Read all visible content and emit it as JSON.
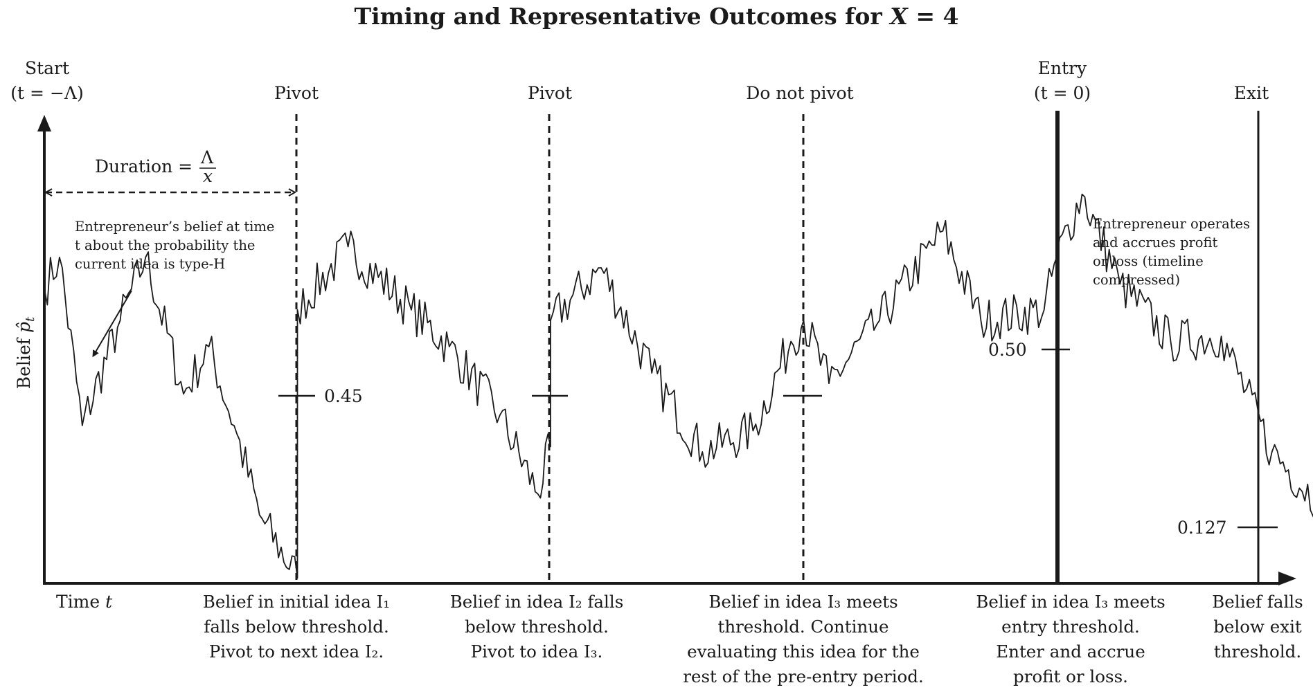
{
  "title": {
    "prefix": "Timing and Representative Outcomes for ",
    "var": "X",
    "suffix": " = 4"
  },
  "top_labels": {
    "start": "Start",
    "start_sub": "(t = −Λ)",
    "pivot1": "Pivot",
    "pivot2": "Pivot",
    "do_not_pivot": "Do not pivot",
    "entry": "Entry",
    "entry_sub": "(t = 0)",
    "exit": "Exit"
  },
  "duration": {
    "label": "Duration =",
    "num": "Λ",
    "den": "x"
  },
  "y_axis_label": {
    "text": "Belief ",
    "symbol": "p̂",
    "sub": "t"
  },
  "x_axis_label": {
    "text": "Time ",
    "symbol": "t"
  },
  "notes": {
    "belief": [
      "Entrepreneur’s belief at time",
      "t about the probability the",
      "current idea is type-H"
    ],
    "operates": [
      "Entrepreneur operates",
      "and accrues profit",
      "or loss (timeline",
      "compressed)"
    ]
  },
  "thresholds": {
    "pivot": "0.45",
    "entry": "0.50",
    "exit": "0.127"
  },
  "captions": {
    "c1": [
      "Belief in initial idea I₁",
      "falls below threshold.",
      "Pivot to next idea I₂."
    ],
    "c2": [
      "Belief in idea I₂ falls",
      "below threshold.",
      "Pivot to idea I₃."
    ],
    "c3": [
      "Belief in idea I₃ meets",
      "threshold. Continue",
      "evaluating this idea for the",
      "rest of the pre-entry period."
    ],
    "c4": [
      "Belief in idea I₃ meets",
      "entry threshold.",
      "Enter and accrue",
      "profit or loss."
    ],
    "c5": [
      "Belief falls",
      "below exit",
      "threshold."
    ]
  },
  "path_keypoints": [
    [
      0,
      0.56
    ],
    [
      0.06,
      0.62
    ],
    [
      0.15,
      0.3
    ],
    [
      0.3,
      0.5
    ],
    [
      0.4,
      0.62
    ],
    [
      0.55,
      0.36
    ],
    [
      0.65,
      0.45
    ],
    [
      0.75,
      0.3
    ],
    [
      0.85,
      0.13
    ],
    [
      1.0,
      0.01
    ],
    [
      1.0,
      0.52
    ],
    [
      1.2,
      0.64
    ],
    [
      1.45,
      0.52
    ],
    [
      1.6,
      0.45
    ],
    [
      1.8,
      0.32
    ],
    [
      1.95,
      0.17
    ],
    [
      2.0,
      0.26
    ],
    [
      2.0,
      0.5
    ],
    [
      2.2,
      0.6
    ],
    [
      2.4,
      0.4
    ],
    [
      2.6,
      0.25
    ],
    [
      2.8,
      0.29
    ],
    [
      2.95,
      0.46
    ],
    [
      3.0,
      0.5
    ],
    [
      3.1,
      0.38
    ],
    [
      3.3,
      0.5
    ],
    [
      3.55,
      0.67
    ],
    [
      3.7,
      0.5
    ],
    [
      3.95,
      0.52
    ],
    [
      4.0,
      0.62
    ],
    [
      4.1,
      0.74
    ],
    [
      4.25,
      0.57
    ],
    [
      4.45,
      0.46
    ],
    [
      4.65,
      0.47
    ],
    [
      4.85,
      0.25
    ],
    [
      5.1,
      0.12
    ]
  ],
  "colors": {
    "ink": "#1a1a1a",
    "background": "#ffffff"
  }
}
